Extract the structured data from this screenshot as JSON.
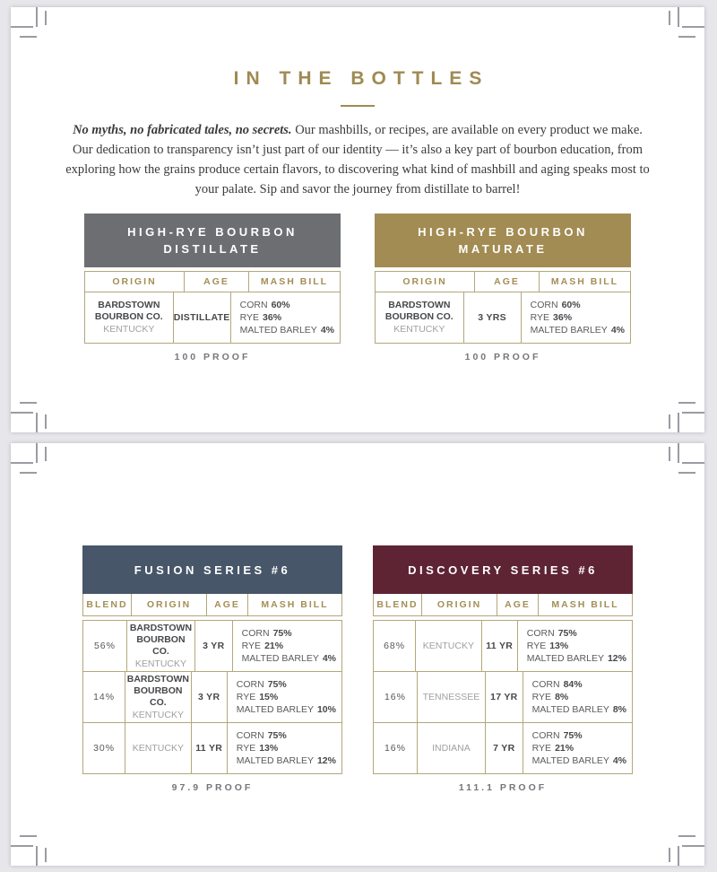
{
  "colors": {
    "gold_accent": "#9f8a52",
    "table_border": "#b3a77c",
    "crop_mark": "#9b9ba3"
  },
  "page1": {
    "title": "IN THE BOTTLES",
    "intro": {
      "lead": "No myths, no fabricated tales, no secrets.",
      "body": " Our mashbills, or recipes, are available on every product we make. Our dedication to transparency isn’t just part of our identity — it’s also a key part of bourbon education, from exploring how the grains produce certain flavors, to discovering what kind of mashbill and aging speaks most to your palate. Sip and savor the journey from distillate to barrel!"
    },
    "tables": [
      {
        "title": "HIGH-RYE BOURBON DISTILLATE",
        "header_color": "#6d6e71",
        "columns": {
          "origin": "ORIGIN",
          "age": "AGE",
          "mash": "MASH BILL"
        },
        "row": {
          "origin_main": "BARDSTOWN BOURBON CO.",
          "origin_sub": "KENTUCKY",
          "age": "DISTILLATE",
          "mash": [
            {
              "label": "CORN",
              "value": "60%"
            },
            {
              "label": "RYE",
              "value": "36%"
            },
            {
              "label": "MALTED BARLEY",
              "value": "4%"
            }
          ]
        },
        "proof": "100 PROOF"
      },
      {
        "title": "HIGH-RYE BOURBON MATURATE",
        "header_color": "#a28c53",
        "columns": {
          "origin": "ORIGIN",
          "age": "AGE",
          "mash": "MASH BILL"
        },
        "row": {
          "origin_main": "BARDSTOWN BOURBON CO.",
          "origin_sub": "KENTUCKY",
          "age": "3 YRS",
          "mash": [
            {
              "label": "CORN",
              "value": "60%"
            },
            {
              "label": "RYE",
              "value": "36%"
            },
            {
              "label": "MALTED BARLEY",
              "value": "4%"
            }
          ]
        },
        "proof": "100 PROOF"
      }
    ]
  },
  "page2": {
    "tables": [
      {
        "title": "FUSION SERIES #6",
        "header_color": "#475669",
        "columns": {
          "blend": "BLEND",
          "origin": "ORIGIN",
          "age": "AGE",
          "mash": "MASH BILL"
        },
        "rows": [
          {
            "blend": "56%",
            "origin_main": "BARDSTOWN BOURBON CO.",
            "origin_sub": "KENTUCKY",
            "age": "3 YR",
            "mash": [
              {
                "label": "CORN",
                "value": "75%"
              },
              {
                "label": "RYE",
                "value": "21%"
              },
              {
                "label": "MALTED BARLEY",
                "value": "4%"
              }
            ]
          },
          {
            "blend": "14%",
            "origin_main": "BARDSTOWN BOURBON CO.",
            "origin_sub": "KENTUCKY",
            "age": "3 YR",
            "mash": [
              {
                "label": "CORN",
                "value": "75%"
              },
              {
                "label": "RYE",
                "value": "15%"
              },
              {
                "label": "MALTED BARLEY",
                "value": "10%"
              }
            ]
          },
          {
            "blend": "30%",
            "origin_main": "",
            "origin_sub": "KENTUCKY",
            "age": "11 YR",
            "mash": [
              {
                "label": "CORN",
                "value": "75%"
              },
              {
                "label": "RYE",
                "value": "13%"
              },
              {
                "label": "MALTED BARLEY",
                "value": "12%"
              }
            ]
          }
        ],
        "proof": "97.9 PROOF"
      },
      {
        "title": "DISCOVERY SERIES #6",
        "header_color": "#5e2433",
        "columns": {
          "blend": "BLEND",
          "origin": "ORIGIN",
          "age": "AGE",
          "mash": "MASH BILL"
        },
        "rows": [
          {
            "blend": "68%",
            "origin_main": "",
            "origin_sub": "KENTUCKY",
            "age": "11 YR",
            "mash": [
              {
                "label": "CORN",
                "value": "75%"
              },
              {
                "label": "RYE",
                "value": "13%"
              },
              {
                "label": "MALTED BARLEY",
                "value": "12%"
              }
            ]
          },
          {
            "blend": "16%",
            "origin_main": "",
            "origin_sub": "TENNESSEE",
            "age": "17 YR",
            "mash": [
              {
                "label": "CORN",
                "value": "84%"
              },
              {
                "label": "RYE",
                "value": "8%"
              },
              {
                "label": "MALTED BARLEY",
                "value": "8%"
              }
            ]
          },
          {
            "blend": "16%",
            "origin_main": "",
            "origin_sub": "INDIANA",
            "age": "7 YR",
            "mash": [
              {
                "label": "CORN",
                "value": "75%"
              },
              {
                "label": "RYE",
                "value": "21%"
              },
              {
                "label": "MALTED BARLEY",
                "value": "4%"
              }
            ]
          }
        ],
        "proof": "111.1 PROOF"
      }
    ]
  }
}
